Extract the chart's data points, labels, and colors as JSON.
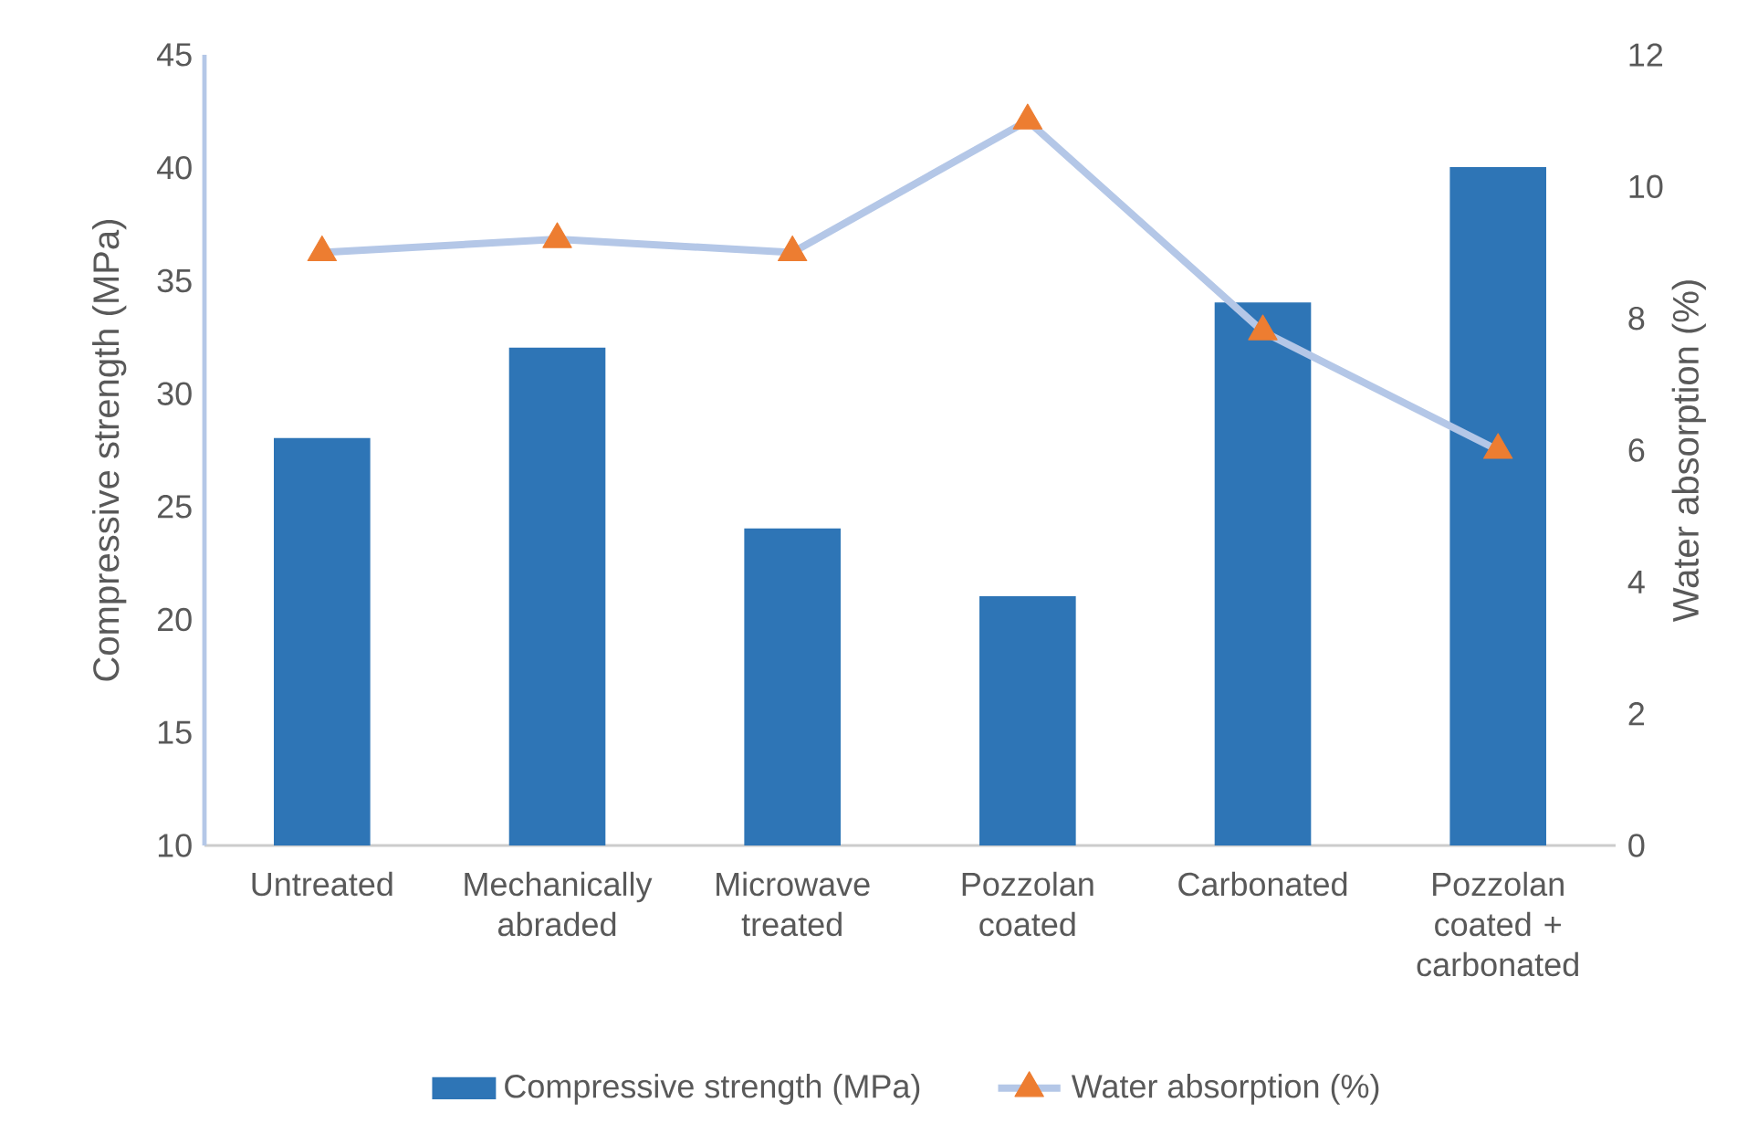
{
  "chart_data": {
    "type": "bar",
    "categories": [
      "Untreated",
      "Mechanically abraded",
      "Microwave treated",
      "Pozzolan coated",
      "Carbonated",
      "Pozzolan coated + carbonated"
    ],
    "series": [
      {
        "name": "Compressive strength (MPa)",
        "color": "#2e75b6",
        "values": [
          28,
          32,
          24,
          21,
          34,
          40
        ]
      },
      {
        "name": "Water absorption (%)",
        "type": "line",
        "axis": "y2",
        "marker": "triangle",
        "color": "#ed7d31",
        "values": [
          9.0,
          9.2,
          9.0,
          11.0,
          7.8,
          6.0
        ]
      }
    ],
    "ylabel": "Compressive strength (MPa)",
    "y2label": "Water absorption (%)",
    "ylim": [
      10,
      45
    ],
    "yticks": [
      10,
      15,
      20,
      25,
      30,
      35,
      40,
      45
    ],
    "y2lim": [
      0,
      12
    ],
    "y2ticks": [
      0,
      2,
      4,
      6,
      8,
      10,
      12
    ],
    "legend": "bottom"
  }
}
